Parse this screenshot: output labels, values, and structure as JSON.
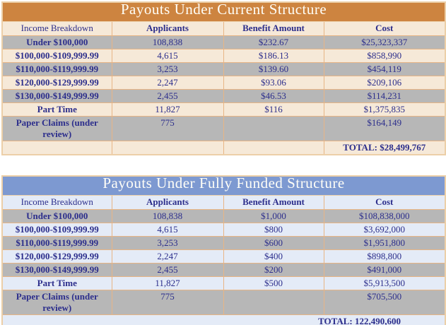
{
  "colors": {
    "text_navy": "#2c2e8c",
    "inner_border": "#e8b585",
    "outer_border": "#eccfa8",
    "gray_row": "#b7b7b7"
  },
  "tables": [
    {
      "title": "Payouts Under Current Structure",
      "columns": [
        "Income Breakdown",
        "Applicants",
        "Benefit Amount",
        "Cost"
      ],
      "rows": [
        [
          "Under $100,000",
          "108,838",
          "$232.67",
          "$25,323,337"
        ],
        [
          "$100,000-$109,999.99",
          "4,615",
          "$186.13",
          "$858,990"
        ],
        [
          "$110,000-$119,999.99",
          "3,253",
          "$139.60",
          "$454,119"
        ],
        [
          "$120,000-$129,999.99",
          "2,247",
          "$93.06",
          "$209,106"
        ],
        [
          "$130,000-$149,999.99",
          "2,455",
          "$46.53",
          "$114,231"
        ],
        [
          "Part Time",
          "11,827",
          "$116",
          "$1,375,835"
        ],
        [
          "Paper Claims (under review)",
          "775",
          "",
          "$164,149"
        ]
      ],
      "total": "TOTAL:  $28,499,767",
      "total_span": false,
      "theme": {
        "banner_bg": "#cd8440",
        "banner_text": "#fffef7",
        "header_bg": "#f6e9d8",
        "row_even_bg": "#b7b7b7",
        "row_odd_bg": "#f6e9d8"
      }
    },
    {
      "title": "Payouts Under Fully Funded Structure",
      "columns": [
        "Income Breakdown",
        "Applicants",
        "Benefit Amount",
        "Cost"
      ],
      "rows": [
        [
          "Under $100,000",
          "108,838",
          "$1,000",
          "$108,838,000"
        ],
        [
          "$100,000-$109,999.99",
          "4,615",
          "$800",
          "$3,692,000"
        ],
        [
          "$110,000-$119,999.99",
          "3,253",
          "$600",
          "$1,951,800"
        ],
        [
          "$120,000-$129,999.99",
          "2,247",
          "$400",
          "$898,800"
        ],
        [
          "$130,000-$149,999.99",
          "2,455",
          "$200",
          "$491,000"
        ],
        [
          "Part Time",
          "11,827",
          "$500",
          "$5,913,500"
        ],
        [
          "Paper Claims (under review)",
          "775",
          "",
          "$705,500"
        ]
      ],
      "total": "TOTAL:  122,490,600",
      "total_span": true,
      "theme": {
        "banner_bg": "#7d99d1",
        "banner_text": "#fffef7",
        "header_bg": "#e4ebf7",
        "row_even_bg": "#b7b7b7",
        "row_odd_bg": "#e4ebf7"
      }
    }
  ]
}
